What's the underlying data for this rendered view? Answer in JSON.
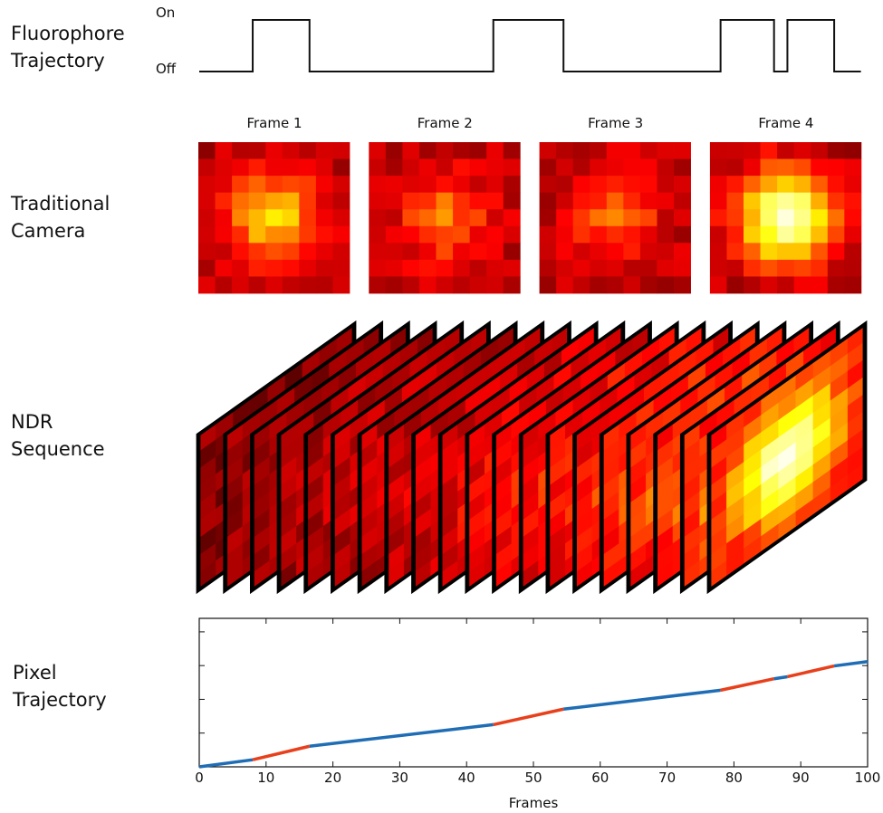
{
  "row_labels": [
    "Fluorophore\nTrajectory",
    "Traditional\nCamera",
    "NDR\nSequence",
    "Pixel\nTrajectory"
  ],
  "camera_frames": {
    "titles": [
      "Frame 1",
      "Frame 2",
      "Frame 3",
      "Frame 4"
    ]
  },
  "chart_data": [
    {
      "type": "step",
      "x": [
        0,
        8,
        8,
        16.5,
        16.5,
        44,
        44,
        54.5,
        54.5,
        78,
        78,
        86,
        86,
        88,
        88,
        95,
        95,
        99
      ],
      "values": [
        0,
        0,
        1,
        1,
        0,
        0,
        1,
        1,
        0,
        0,
        1,
        1,
        0,
        0,
        1,
        1,
        0,
        0
      ],
      "xlim": [
        0,
        100
      ],
      "ylim": [
        0,
        1
      ],
      "yticks": [
        {
          "value": 1,
          "label": "On"
        },
        {
          "value": 0,
          "label": "Off"
        }
      ],
      "color": "#111111"
    },
    {
      "type": "line",
      "x": [
        0,
        8,
        16.5,
        44,
        54.5,
        78,
        86,
        88,
        95,
        100
      ],
      "series": [
        {
          "values": [
            0,
            0.21,
            0.61,
            1.25,
            1.71,
            2.27,
            2.61,
            2.67,
            2.99,
            3.12
          ]
        }
      ],
      "color_off": "#1f6db5",
      "color_on": "#e8401c",
      "xlim": [
        0,
        100
      ],
      "ylim": [
        0,
        4.4
      ],
      "xticks": [
        0,
        10,
        20,
        30,
        40,
        50,
        60,
        70,
        80,
        90,
        100
      ],
      "yticks": [
        {
          "value": 1,
          "label": null
        },
        {
          "value": 2,
          "label": null
        },
        {
          "value": 3,
          "label": null
        },
        {
          "value": 4,
          "label": null
        }
      ],
      "x_label": "Frames"
    }
  ]
}
